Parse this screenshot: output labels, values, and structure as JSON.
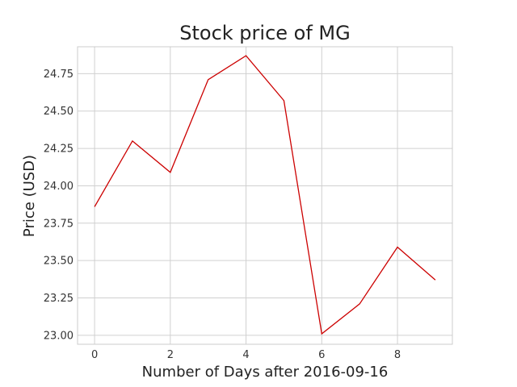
{
  "chart_data": {
    "type": "line",
    "title": "Stock price of MG",
    "xlabel": "Number of Days after 2016-09-16",
    "ylabel": "Price (USD)",
    "x": [
      0,
      1,
      2,
      3,
      4,
      5,
      6,
      7,
      8,
      9
    ],
    "series": [
      {
        "values": [
          23.86,
          24.3,
          24.09,
          24.71,
          24.87,
          24.57,
          23.01,
          23.21,
          23.59,
          23.37
        ],
        "color": "#cc0000"
      }
    ],
    "xlim": [
      -0.45,
      9.45
    ],
    "ylim": [
      22.94,
      24.93
    ],
    "xticks": [
      0,
      2,
      4,
      6,
      8
    ],
    "xtick_labels": [
      "0",
      "2",
      "4",
      "6",
      "8"
    ],
    "yticks": [
      23.0,
      23.25,
      23.5,
      23.75,
      24.0,
      24.25,
      24.5,
      24.75
    ],
    "ytick_labels": [
      "23.00",
      "23.25",
      "23.50",
      "23.75",
      "24.00",
      "24.25",
      "24.50",
      "24.75"
    ],
    "grid": true,
    "legend": false
  }
}
